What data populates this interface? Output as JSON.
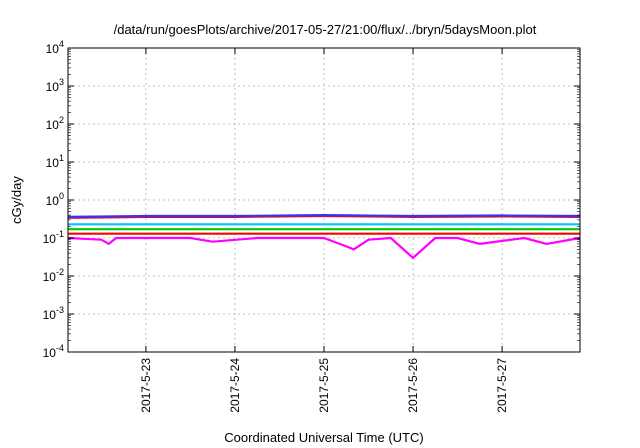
{
  "chart_data": {
    "type": "line",
    "title": "/data/run/goesPlots/archive/2017-05-27/21:00/flux/../bryn/5daysMoon.plot",
    "xlabel": "Coordinated Universal Time (UTC)",
    "ylabel": "cGy/day",
    "yscale": "log",
    "ylim": [
      0.0001,
      10000
    ],
    "xlim": [
      "2017-05-22T03:00",
      "2017-05-27T21:00"
    ],
    "grid": true,
    "x_ticks": [
      {
        "date": "2017-05-23T00:00",
        "label": "2017-5-23"
      },
      {
        "date": "2017-05-24T00:00",
        "label": "2017-5-24"
      },
      {
        "date": "2017-05-25T00:00",
        "label": "2017-5-25"
      },
      {
        "date": "2017-05-26T00:00",
        "label": "2017-5-26"
      },
      {
        "date": "2017-05-27T00:00",
        "label": "2017-5-27"
      }
    ],
    "y_ticks": [
      {
        "value": 0.0001,
        "base": "10",
        "exp": "-4"
      },
      {
        "value": 0.001,
        "base": "10",
        "exp": "-3"
      },
      {
        "value": 0.01,
        "base": "10",
        "exp": "-2"
      },
      {
        "value": 0.1,
        "base": "10",
        "exp": "-1"
      },
      {
        "value": 1,
        "base": "10",
        "exp": "0"
      },
      {
        "value": 10,
        "base": "10",
        "exp": "1"
      },
      {
        "value": 100,
        "base": "10",
        "exp": "2"
      },
      {
        "value": 1000,
        "base": "10",
        "exp": "3"
      },
      {
        "value": 10000,
        "base": "10",
        "exp": "4"
      }
    ],
    "series": [
      {
        "color": "#ff00ff",
        "x": [
          "2017-05-22T03:00",
          "2017-05-22T12:00",
          "2017-05-22T14:00",
          "2017-05-22T16:00",
          "2017-05-23T00:00",
          "2017-05-23T12:00",
          "2017-05-23T18:00",
          "2017-05-24T06:00",
          "2017-05-24T18:00",
          "2017-05-25T00:00",
          "2017-05-25T06:00",
          "2017-05-25T08:00",
          "2017-05-25T12:00",
          "2017-05-25T18:00",
          "2017-05-26T00:00",
          "2017-05-26T06:00",
          "2017-05-26T12:00",
          "2017-05-26T18:00",
          "2017-05-27T06:00",
          "2017-05-27T12:00",
          "2017-05-27T21:00"
        ],
        "y": [
          0.1,
          0.09,
          0.07,
          0.1,
          0.1,
          0.1,
          0.08,
          0.1,
          0.1,
          0.1,
          0.06,
          0.05,
          0.09,
          0.1,
          0.03,
          0.1,
          0.1,
          0.07,
          0.1,
          0.07,
          0.1
        ]
      },
      {
        "color": "#ff0000",
        "x": [
          "2017-05-22T03:00",
          "2017-05-23T00:00",
          "2017-05-24T00:00",
          "2017-05-25T00:00",
          "2017-05-26T00:00",
          "2017-05-27T00:00",
          "2017-05-27T21:00"
        ],
        "y": [
          0.13,
          0.13,
          0.13,
          0.13,
          0.13,
          0.13,
          0.13
        ]
      },
      {
        "color": "#00cc00",
        "x": [
          "2017-05-22T03:00",
          "2017-05-23T00:00",
          "2017-05-24T00:00",
          "2017-05-25T00:00",
          "2017-05-26T00:00",
          "2017-05-27T00:00",
          "2017-05-27T21:00"
        ],
        "y": [
          0.17,
          0.17,
          0.17,
          0.17,
          0.17,
          0.17,
          0.17
        ]
      },
      {
        "color": "#00bfff",
        "x": [
          "2017-05-22T03:00",
          "2017-05-23T00:00",
          "2017-05-24T00:00",
          "2017-05-25T00:00",
          "2017-05-26T00:00",
          "2017-05-27T00:00",
          "2017-05-27T21:00"
        ],
        "y": [
          0.23,
          0.23,
          0.23,
          0.23,
          0.23,
          0.23,
          0.23
        ]
      },
      {
        "color": "#ff0000",
        "x": [
          "2017-05-22T03:00",
          "2017-05-23T00:00",
          "2017-05-24T00:00",
          "2017-05-25T00:00",
          "2017-05-26T00:00",
          "2017-05-27T00:00",
          "2017-05-27T21:00"
        ],
        "y": [
          0.34,
          0.36,
          0.36,
          0.38,
          0.36,
          0.37,
          0.36
        ]
      },
      {
        "color": "#3333ff",
        "x": [
          "2017-05-22T03:00",
          "2017-05-23T00:00",
          "2017-05-24T00:00",
          "2017-05-25T00:00",
          "2017-05-26T00:00",
          "2017-05-27T00:00",
          "2017-05-27T21:00"
        ],
        "y": [
          0.36,
          0.38,
          0.38,
          0.4,
          0.38,
          0.39,
          0.38
        ]
      }
    ]
  }
}
